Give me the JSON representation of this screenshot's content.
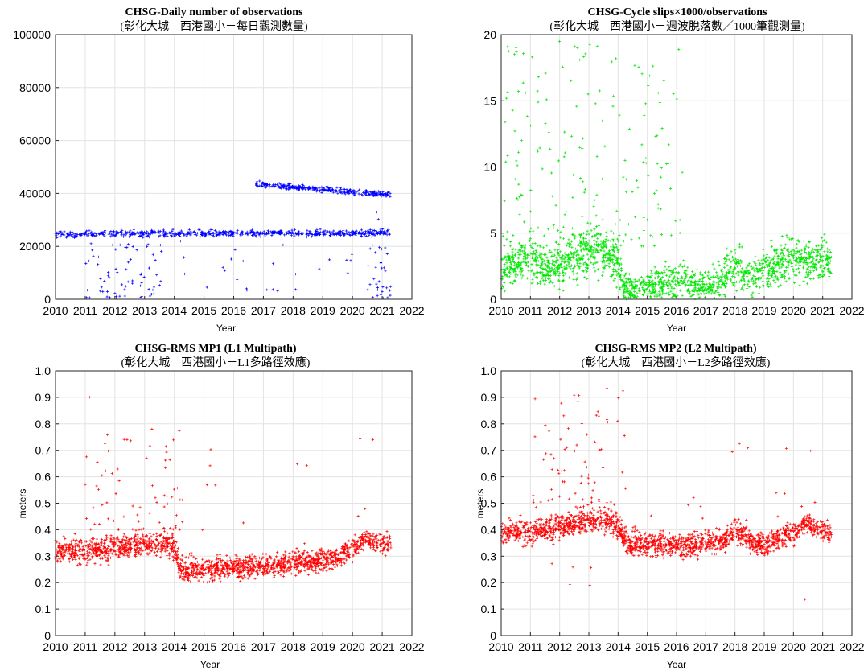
{
  "chart_data": [
    {
      "type": "scatter",
      "title": "CHSG-Daily number of observations",
      "subtitle": "(彰化大城　西港國小－每日觀測數量)",
      "xlabel": "Year",
      "ylabel": "",
      "xlim": [
        2010,
        2022
      ],
      "ylim": [
        0,
        100000
      ],
      "xticks": [
        2010,
        2011,
        2012,
        2013,
        2014,
        2015,
        2016,
        2017,
        2018,
        2019,
        2020,
        2021,
        2022
      ],
      "yticks": [
        0,
        20000,
        40000,
        60000,
        80000,
        100000
      ],
      "ytick_labels": [
        "0",
        "20000",
        "40000",
        "60000",
        "80000",
        "100000"
      ],
      "marker": "+",
      "color": "#0000ff",
      "grid": true,
      "series": [
        {
          "x_range": [
            2010.0,
            2021.28
          ],
          "y_start": 24600,
          "y_end": 25200,
          "spread": 1500,
          "density": 650
        },
        {
          "x_range": [
            2016.75,
            2021.28
          ],
          "y_start": 43500,
          "y_end": 39500,
          "spread": 1300,
          "density": 300
        }
      ],
      "outliers": [
        {
          "x_range": [
            2011.0,
            2013.6
          ],
          "y_range": [
            500,
            22000
          ],
          "count": 70
        },
        {
          "x_range": [
            2014.0,
            2020.2
          ],
          "y_range": [
            3000,
            22000
          ],
          "count": 25
        },
        {
          "x_range": [
            2020.5,
            2021.3
          ],
          "y_range": [
            500,
            33000
          ],
          "count": 35
        }
      ]
    },
    {
      "type": "scatter",
      "title": "CHSG-Cycle slips×1000/observations",
      "subtitle": "(彰化大城　西港國小－週波脫落數／1000筆觀測量)",
      "xlabel": "Year",
      "ylabel": "",
      "xlim": [
        2010,
        2022
      ],
      "ylim": [
        0,
        20
      ],
      "xticks": [
        2010,
        2011,
        2012,
        2013,
        2014,
        2015,
        2016,
        2017,
        2018,
        2019,
        2020,
        2021,
        2022
      ],
      "yticks": [
        0,
        5,
        10,
        15,
        20
      ],
      "ytick_labels": [
        "0",
        "5",
        "10",
        "15",
        "20"
      ],
      "marker": "+",
      "color": "#00e600",
      "grid": true,
      "baseline": [
        [
          2010.0,
          2.3
        ],
        [
          2010.5,
          2.6
        ],
        [
          2011.0,
          3.2
        ],
        [
          2011.5,
          2.2
        ],
        [
          2012.0,
          2.5
        ],
        [
          2012.5,
          3.2
        ],
        [
          2013.0,
          3.8
        ],
        [
          2013.5,
          3.6
        ],
        [
          2014.0,
          3.0
        ],
        [
          2014.2,
          1.0
        ],
        [
          2015.0,
          0.9
        ],
        [
          2015.7,
          1.2
        ],
        [
          2016.2,
          1.6
        ],
        [
          2016.8,
          0.9
        ],
        [
          2017.3,
          1.1
        ],
        [
          2018.0,
          2.4
        ],
        [
          2018.5,
          1.6
        ],
        [
          2019.0,
          2.2
        ],
        [
          2019.5,
          2.7
        ],
        [
          2020.0,
          3.2
        ],
        [
          2020.5,
          2.9
        ],
        [
          2021.0,
          3.1
        ],
        [
          2021.3,
          2.8
        ]
      ],
      "x_range": [
        2010.0,
        2021.3
      ],
      "outliers": [
        {
          "x_range": [
            2010.0,
            2016.2
          ],
          "y_range": [
            4,
            19.5
          ],
          "count": 200
        }
      ]
    },
    {
      "type": "scatter",
      "title": "CHSG-RMS MP1 (L1 Multipath)",
      "subtitle": "(彰化大城　西港國小－L1多路徑效應)",
      "xlabel": "Year",
      "ylabel": "meters",
      "xlim": [
        2010,
        2022
      ],
      "ylim": [
        0,
        1.0
      ],
      "xticks": [
        2010,
        2011,
        2012,
        2013,
        2014,
        2015,
        2016,
        2017,
        2018,
        2019,
        2020,
        2021,
        2022
      ],
      "yticks": [
        0,
        0.1,
        0.2,
        0.3,
        0.4,
        0.5,
        0.6,
        0.7,
        0.8,
        0.9,
        1.0
      ],
      "ytick_labels": [
        "0",
        "0.1",
        "0.2",
        "0.3",
        "0.4",
        "0.5",
        "0.6",
        "0.7",
        "0.8",
        "0.9",
        "1.0"
      ],
      "marker": "+",
      "color": "#ff0000",
      "grid": true,
      "baseline": [
        [
          2010.0,
          0.32
        ],
        [
          2011.0,
          0.32
        ],
        [
          2012.0,
          0.33
        ],
        [
          2013.0,
          0.35
        ],
        [
          2014.0,
          0.34
        ],
        [
          2014.2,
          0.25
        ],
        [
          2015.0,
          0.25
        ],
        [
          2016.0,
          0.26
        ],
        [
          2017.0,
          0.26
        ],
        [
          2018.0,
          0.28
        ],
        [
          2019.0,
          0.28
        ],
        [
          2019.6,
          0.3
        ],
        [
          2020.0,
          0.33
        ],
        [
          2020.5,
          0.36
        ],
        [
          2021.3,
          0.34
        ]
      ],
      "x_range": [
        2010.0,
        2021.3
      ],
      "outliers": [
        {
          "x_range": [
            2011.0,
            2014.3
          ],
          "y_range": [
            0.4,
            0.78
          ],
          "count": 70
        },
        {
          "x_range": [
            2014.5,
            2021.3
          ],
          "y_range": [
            0.38,
            0.75
          ],
          "count": 12
        },
        {
          "x_range": [
            2011.1,
            2011.25
          ],
          "y_range": [
            0.9,
            0.93
          ],
          "count": 1
        }
      ]
    },
    {
      "type": "scatter",
      "title": "CHSG-RMS MP2 (L2 Multipath)",
      "subtitle": "(彰化大城　西港國小－L2多路徑效應)",
      "xlabel": "Year",
      "ylabel": "meters",
      "xlim": [
        2010,
        2022
      ],
      "ylim": [
        0,
        1.0
      ],
      "xticks": [
        2010,
        2011,
        2012,
        2013,
        2014,
        2015,
        2016,
        2017,
        2018,
        2019,
        2020,
        2021,
        2022
      ],
      "yticks": [
        0,
        0.1,
        0.2,
        0.3,
        0.4,
        0.5,
        0.6,
        0.7,
        0.8,
        0.9,
        1.0
      ],
      "ytick_labels": [
        "0",
        "0.1",
        "0.2",
        "0.3",
        "0.4",
        "0.5",
        "0.6",
        "0.7",
        "0.8",
        "0.9",
        "1.0"
      ],
      "marker": "+",
      "color": "#ff0000",
      "grid": true,
      "baseline": [
        [
          2010.0,
          0.39
        ],
        [
          2011.0,
          0.39
        ],
        [
          2012.0,
          0.41
        ],
        [
          2013.0,
          0.44
        ],
        [
          2014.0,
          0.42
        ],
        [
          2014.3,
          0.35
        ],
        [
          2015.0,
          0.35
        ],
        [
          2016.0,
          0.34
        ],
        [
          2017.0,
          0.35
        ],
        [
          2017.6,
          0.36
        ],
        [
          2018.0,
          0.4
        ],
        [
          2018.5,
          0.36
        ],
        [
          2019.0,
          0.34
        ],
        [
          2019.5,
          0.37
        ],
        [
          2020.0,
          0.39
        ],
        [
          2020.5,
          0.42
        ],
        [
          2021.3,
          0.38
        ]
      ],
      "x_range": [
        2010.0,
        2021.3
      ],
      "outliers": [
        {
          "x_range": [
            2011.0,
            2014.3
          ],
          "y_range": [
            0.48,
            0.94
          ],
          "count": 80
        },
        {
          "x_range": [
            2014.5,
            2021.3
          ],
          "y_range": [
            0.44,
            0.74
          ],
          "count": 15
        },
        {
          "x_range": [
            2011.5,
            2013.5
          ],
          "y_range": [
            0.18,
            0.28
          ],
          "count": 5
        },
        {
          "x_range": [
            2020.3,
            2020.45
          ],
          "y_range": [
            0.13,
            0.15
          ],
          "count": 1
        },
        {
          "x_range": [
            2021.15,
            2021.3
          ],
          "y_range": [
            0.13,
            0.15
          ],
          "count": 1
        }
      ]
    }
  ]
}
